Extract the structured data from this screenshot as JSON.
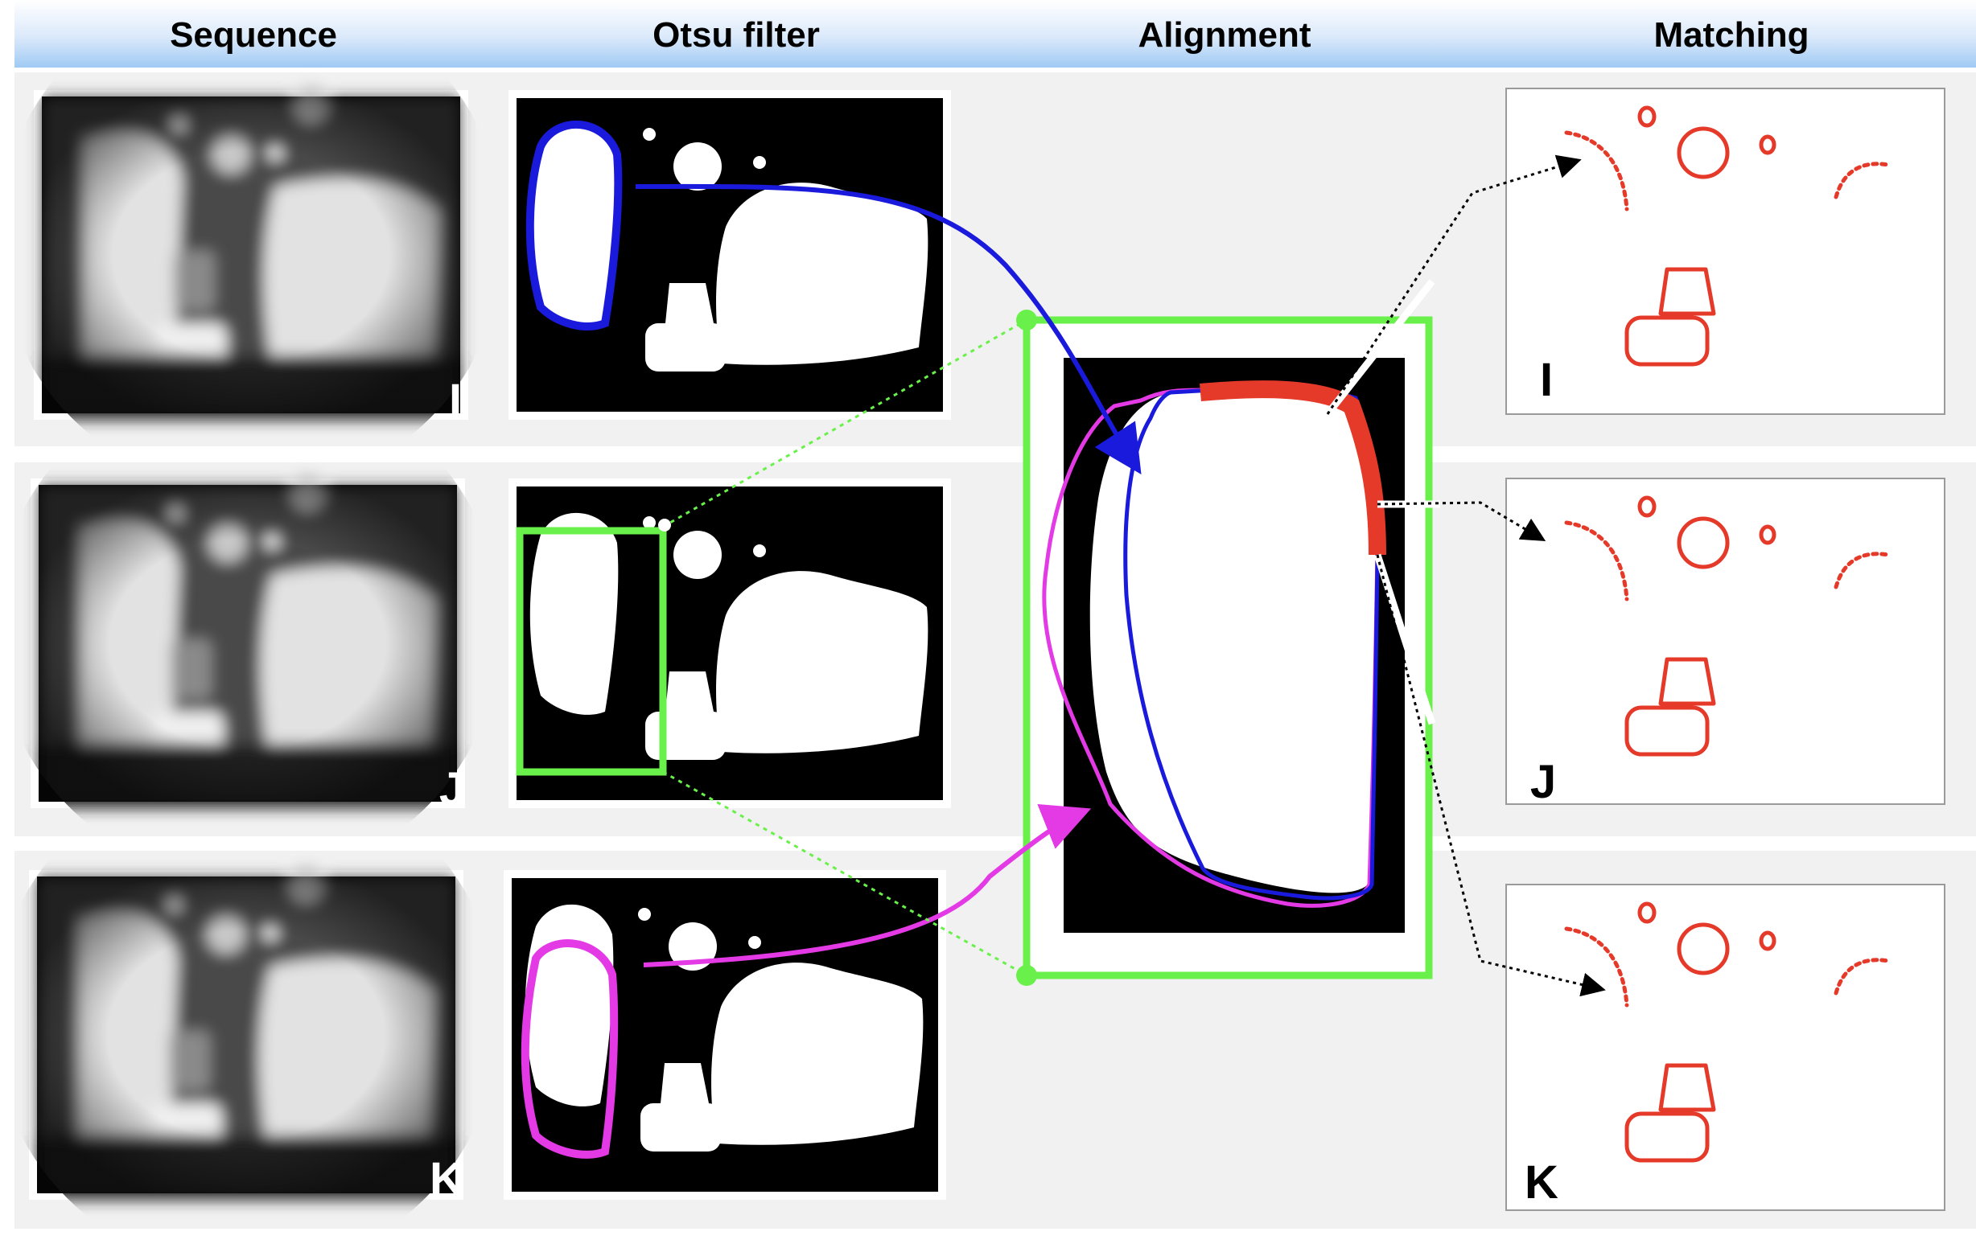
{
  "header": {
    "columns": [
      {
        "label": "Sequence"
      },
      {
        "label": "Otsu filter"
      },
      {
        "label": "Alignment"
      },
      {
        "label": "Matching"
      }
    ]
  },
  "rows": [
    {
      "sequence_label": "I",
      "matching_label": "I",
      "contour_color": "#1a1adc"
    },
    {
      "sequence_label": "J",
      "matching_label": "J",
      "contour_color": "#6af04a"
    },
    {
      "sequence_label": "K",
      "matching_label": "K",
      "contour_color": "#e33ae6"
    }
  ],
  "colors": {
    "header_top": "#ffffff",
    "header_bottom": "#a9d0f5",
    "row_band": "#f1f1f1",
    "blue_contour": "#1a1adc",
    "magenta_contour": "#e33ae6",
    "green_box": "#6af04a",
    "match_highlight": "#e53a2a",
    "matching_dots": "#e53a2a"
  },
  "icons": [
    "dotted-arrow-icon",
    "curved-arrow-icon"
  ]
}
